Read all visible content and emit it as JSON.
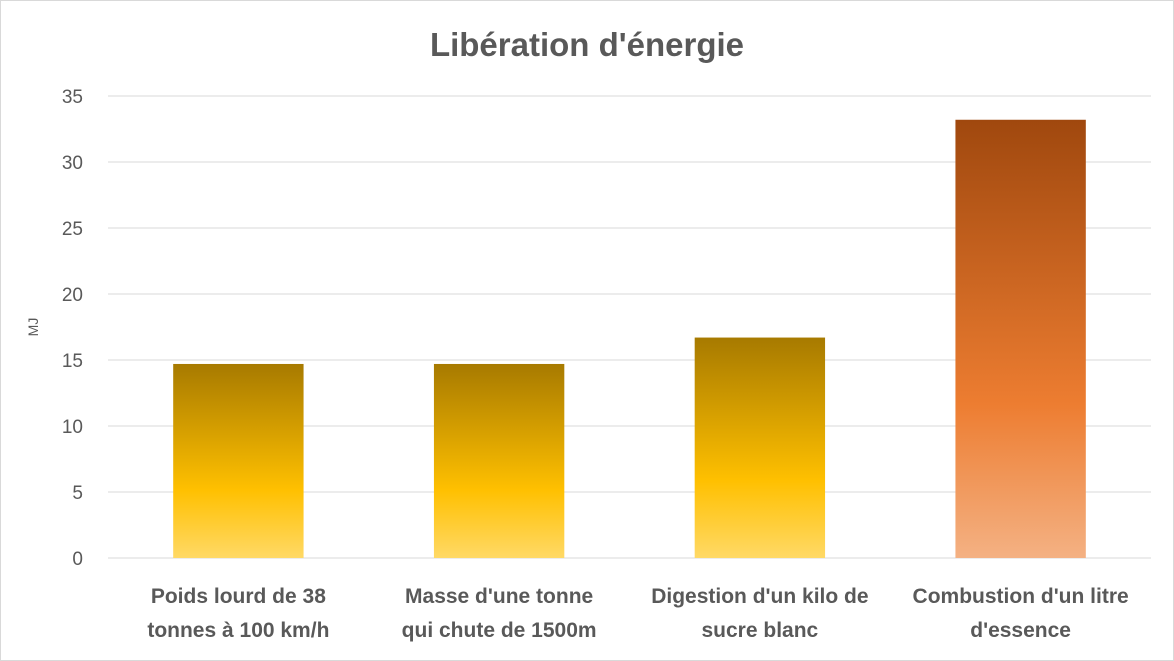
{
  "chart_data": {
    "type": "bar",
    "title": "Libération d'énergie",
    "xlabel": "",
    "ylabel": "MJ",
    "ylim": [
      0,
      35
    ],
    "y_ticks": [
      0,
      5,
      10,
      15,
      20,
      25,
      30,
      35
    ],
    "grid": true,
    "legend": "none",
    "categories": [
      [
        "Poids lourd de 38",
        "tonnes à 100 km/h"
      ],
      [
        "Masse d'une tonne",
        "qui chute de 1500m"
      ],
      [
        "Digestion d'un kilo de",
        "sucre blanc"
      ],
      [
        "Combustion d'un litre",
        "d'essence"
      ]
    ],
    "values": [
      14.7,
      14.7,
      16.7,
      33.2
    ],
    "bar_colors": [
      {
        "top": "#a77a00",
        "mid": "#ffc000",
        "bottom": "#ffd966"
      },
      {
        "top": "#a77a00",
        "mid": "#ffc000",
        "bottom": "#ffd966"
      },
      {
        "top": "#a77a00",
        "mid": "#ffc000",
        "bottom": "#ffd966"
      },
      {
        "top": "#a0480e",
        "mid": "#ed7d31",
        "bottom": "#f4b183"
      }
    ]
  }
}
